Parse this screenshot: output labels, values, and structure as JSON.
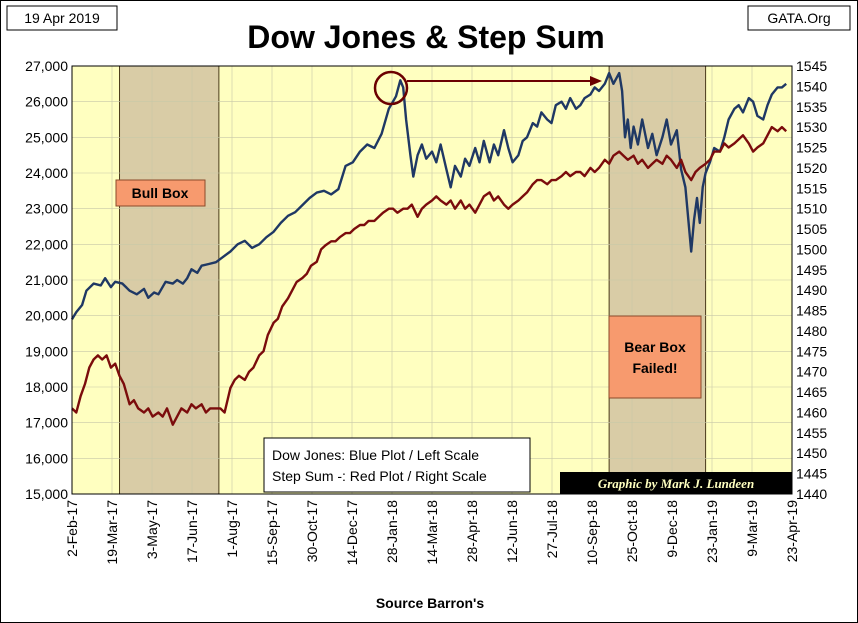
{
  "header": {
    "date": "19 Apr 2019",
    "source_site": "GATA.Org",
    "title": "Dow Jones & Step Sum"
  },
  "legend": {
    "line1": "Dow Jones: Blue Plot / Left Scale",
    "line2": "Step Sum -: Red Plot / Right Scale"
  },
  "credit": "Graphic by Mark J. Lundeen",
  "annotations": {
    "bull_box": "Bull Box",
    "bear_box_line1": "Bear Box",
    "bear_box_line2": "Failed!"
  },
  "colors": {
    "plot_bg": "#ffffc0",
    "box_fill": "#d9cca6",
    "dow": "#1f3864",
    "step_sum": "#7b0c0c",
    "label_fill": "#f79a6e"
  },
  "chart_data": {
    "type": "line",
    "title": "Dow Jones & Step Sum",
    "xlabel": "Source Barron's",
    "x_ticks": [
      "2-Feb-17",
      "19-Mar-17",
      "3-May-17",
      "17-Jun-17",
      "1-Aug-17",
      "15-Sep-17",
      "30-Oct-17",
      "14-Dec-17",
      "28-Jan-18",
      "14-Mar-18",
      "28-Apr-18",
      "12-Jun-18",
      "27-Jul-18",
      "10-Sep-18",
      "25-Oct-18",
      "9-Dec-18",
      "23-Jan-19",
      "9-Mar-19",
      "23-Apr-19"
    ],
    "y_left": {
      "label": "Dow Jones",
      "lim": [
        15000,
        27000
      ],
      "ticks": [
        "15,000",
        "16,000",
        "17,000",
        "18,000",
        "19,000",
        "20,000",
        "21,000",
        "22,000",
        "23,000",
        "24,000",
        "25,000",
        "26,000",
        "27,000"
      ]
    },
    "y_right": {
      "label": "Step Sum",
      "lim": [
        1440,
        1545
      ],
      "ticks": [
        "1440",
        "1445",
        "1450",
        "1455",
        "1460",
        "1465",
        "1470",
        "1475",
        "1480",
        "1485",
        "1490",
        "1495",
        "1500",
        "1505",
        "1510",
        "1515",
        "1520",
        "1525",
        "1530",
        "1535",
        "1540",
        "1545"
      ]
    },
    "shaded_regions": [
      {
        "name": "Bull Box",
        "x_start": 3.3,
        "x_end": 10.2
      },
      {
        "name": "Bear Box",
        "x_start": 37.3,
        "x_end": 44.0
      }
    ],
    "series": [
      {
        "name": "Dow Jones",
        "axis": "left",
        "points": [
          [
            0,
            19900
          ],
          [
            0.3,
            20100
          ],
          [
            0.7,
            20300
          ],
          [
            1.0,
            20700
          ],
          [
            1.5,
            20900
          ],
          [
            2.0,
            20850
          ],
          [
            2.3,
            21050
          ],
          [
            2.7,
            20800
          ],
          [
            3.0,
            20950
          ],
          [
            3.5,
            20900
          ],
          [
            4.0,
            20700
          ],
          [
            4.5,
            20600
          ],
          [
            5.0,
            20750
          ],
          [
            5.3,
            20500
          ],
          [
            5.7,
            20650
          ],
          [
            6.0,
            20600
          ],
          [
            6.5,
            20950
          ],
          [
            7.0,
            20900
          ],
          [
            7.3,
            21000
          ],
          [
            7.7,
            20900
          ],
          [
            8.0,
            21050
          ],
          [
            8.3,
            21300
          ],
          [
            8.7,
            21200
          ],
          [
            9.0,
            21400
          ],
          [
            9.5,
            21450
          ],
          [
            10.0,
            21500
          ],
          [
            10.5,
            21650
          ],
          [
            11.0,
            21800
          ],
          [
            11.5,
            22000
          ],
          [
            12.0,
            22100
          ],
          [
            12.5,
            21900
          ],
          [
            13.0,
            22000
          ],
          [
            13.5,
            22200
          ],
          [
            14.0,
            22350
          ],
          [
            14.5,
            22600
          ],
          [
            15.0,
            22800
          ],
          [
            15.5,
            22900
          ],
          [
            16.0,
            23100
          ],
          [
            16.5,
            23300
          ],
          [
            17.0,
            23450
          ],
          [
            17.5,
            23500
          ],
          [
            18.0,
            23400
          ],
          [
            18.5,
            23550
          ],
          [
            19.0,
            24200
          ],
          [
            19.5,
            24300
          ],
          [
            20.0,
            24600
          ],
          [
            20.5,
            24800
          ],
          [
            21.0,
            24700
          ],
          [
            21.5,
            25100
          ],
          [
            22.0,
            25800
          ],
          [
            22.5,
            26150
          ],
          [
            22.8,
            26600
          ],
          [
            23.0,
            26400
          ],
          [
            23.2,
            25500
          ],
          [
            23.5,
            24500
          ],
          [
            23.7,
            23900
          ],
          [
            24.0,
            24500
          ],
          [
            24.3,
            24800
          ],
          [
            24.6,
            24400
          ],
          [
            25.0,
            24600
          ],
          [
            25.3,
            24300
          ],
          [
            25.6,
            24800
          ],
          [
            26.0,
            24100
          ],
          [
            26.3,
            23600
          ],
          [
            26.6,
            24200
          ],
          [
            27.0,
            23900
          ],
          [
            27.3,
            24400
          ],
          [
            27.6,
            24200
          ],
          [
            28.0,
            24700
          ],
          [
            28.3,
            24300
          ],
          [
            28.6,
            24900
          ],
          [
            29.0,
            24300
          ],
          [
            29.3,
            24800
          ],
          [
            29.6,
            24500
          ],
          [
            30.0,
            25200
          ],
          [
            30.3,
            24700
          ],
          [
            30.6,
            24300
          ],
          [
            31.0,
            24500
          ],
          [
            31.3,
            24900
          ],
          [
            31.6,
            25000
          ],
          [
            32.0,
            25400
          ],
          [
            32.3,
            25300
          ],
          [
            32.6,
            25700
          ],
          [
            33.0,
            25500
          ],
          [
            33.3,
            25400
          ],
          [
            33.6,
            25900
          ],
          [
            34.0,
            26000
          ],
          [
            34.3,
            25800
          ],
          [
            34.6,
            26100
          ],
          [
            35.0,
            25800
          ],
          [
            35.3,
            25900
          ],
          [
            35.6,
            26100
          ],
          [
            36.0,
            26200
          ],
          [
            36.3,
            26400
          ],
          [
            36.6,
            26300
          ],
          [
            37.0,
            26500
          ],
          [
            37.3,
            26800
          ],
          [
            37.6,
            26500
          ],
          [
            38.0,
            26800
          ],
          [
            38.2,
            26300
          ],
          [
            38.4,
            25000
          ],
          [
            38.6,
            25500
          ],
          [
            38.8,
            24700
          ],
          [
            39.0,
            25300
          ],
          [
            39.3,
            24800
          ],
          [
            39.6,
            25500
          ],
          [
            40.0,
            24700
          ],
          [
            40.3,
            25100
          ],
          [
            40.6,
            24500
          ],
          [
            41.0,
            25000
          ],
          [
            41.3,
            25500
          ],
          [
            41.6,
            24800
          ],
          [
            42.0,
            25200
          ],
          [
            42.3,
            24100
          ],
          [
            42.6,
            23600
          ],
          [
            42.8,
            22700
          ],
          [
            43.0,
            21800
          ],
          [
            43.2,
            22700
          ],
          [
            43.4,
            23300
          ],
          [
            43.6,
            22600
          ],
          [
            43.8,
            23600
          ],
          [
            44.0,
            24000
          ],
          [
            44.3,
            24300
          ],
          [
            44.6,
            24700
          ],
          [
            45.0,
            24600
          ],
          [
            45.3,
            25000
          ],
          [
            45.6,
            25500
          ],
          [
            46.0,
            25800
          ],
          [
            46.3,
            25900
          ],
          [
            46.6,
            25700
          ],
          [
            47.0,
            26100
          ],
          [
            47.3,
            26000
          ],
          [
            47.6,
            25600
          ],
          [
            48.0,
            25500
          ],
          [
            48.3,
            25900
          ],
          [
            48.6,
            26200
          ],
          [
            49.0,
            26400
          ],
          [
            49.3,
            26400
          ],
          [
            49.6,
            26500
          ]
        ]
      },
      {
        "name": "Step Sum",
        "axis": "right",
        "points": [
          [
            0,
            1461
          ],
          [
            0.3,
            1460
          ],
          [
            0.6,
            1464
          ],
          [
            0.9,
            1467
          ],
          [
            1.2,
            1471
          ],
          [
            1.5,
            1473
          ],
          [
            1.8,
            1474
          ],
          [
            2.1,
            1473
          ],
          [
            2.4,
            1474
          ],
          [
            2.7,
            1471
          ],
          [
            3.0,
            1472
          ],
          [
            3.3,
            1469
          ],
          [
            3.6,
            1467
          ],
          [
            4.0,
            1462
          ],
          [
            4.3,
            1463
          ],
          [
            4.6,
            1461
          ],
          [
            5.0,
            1460
          ],
          [
            5.3,
            1461
          ],
          [
            5.6,
            1459
          ],
          [
            6.0,
            1460
          ],
          [
            6.3,
            1459
          ],
          [
            6.6,
            1461
          ],
          [
            7.0,
            1457
          ],
          [
            7.3,
            1459
          ],
          [
            7.6,
            1461
          ],
          [
            8.0,
            1460
          ],
          [
            8.3,
            1462
          ],
          [
            8.6,
            1461
          ],
          [
            9.0,
            1462
          ],
          [
            9.3,
            1460
          ],
          [
            9.6,
            1461
          ],
          [
            10.0,
            1461
          ],
          [
            10.3,
            1461
          ],
          [
            10.6,
            1460
          ],
          [
            11.0,
            1466
          ],
          [
            11.3,
            1468
          ],
          [
            11.6,
            1469
          ],
          [
            12.0,
            1468
          ],
          [
            12.3,
            1470
          ],
          [
            12.6,
            1471
          ],
          [
            13.0,
            1474
          ],
          [
            13.3,
            1475
          ],
          [
            13.6,
            1479
          ],
          [
            14.0,
            1482
          ],
          [
            14.3,
            1483
          ],
          [
            14.6,
            1486
          ],
          [
            15.0,
            1488
          ],
          [
            15.3,
            1490
          ],
          [
            15.6,
            1492
          ],
          [
            16.0,
            1493
          ],
          [
            16.3,
            1494
          ],
          [
            16.6,
            1496
          ],
          [
            17.0,
            1497
          ],
          [
            17.3,
            1500
          ],
          [
            17.6,
            1501
          ],
          [
            18.0,
            1502
          ],
          [
            18.3,
            1502
          ],
          [
            18.6,
            1503
          ],
          [
            19.0,
            1504
          ],
          [
            19.3,
            1504
          ],
          [
            19.6,
            1505
          ],
          [
            20.0,
            1506
          ],
          [
            20.3,
            1506
          ],
          [
            20.6,
            1507
          ],
          [
            21.0,
            1507
          ],
          [
            21.3,
            1508
          ],
          [
            21.6,
            1509
          ],
          [
            22.0,
            1510
          ],
          [
            22.3,
            1510
          ],
          [
            22.6,
            1509
          ],
          [
            23.0,
            1510
          ],
          [
            23.3,
            1510
          ],
          [
            23.6,
            1511
          ],
          [
            24.0,
            1508
          ],
          [
            24.3,
            1510
          ],
          [
            24.6,
            1511
          ],
          [
            25.0,
            1512
          ],
          [
            25.3,
            1513
          ],
          [
            25.6,
            1512
          ],
          [
            26.0,
            1511
          ],
          [
            26.3,
            1512
          ],
          [
            26.6,
            1510
          ],
          [
            27.0,
            1512
          ],
          [
            27.3,
            1510
          ],
          [
            27.6,
            1511
          ],
          [
            28.0,
            1509
          ],
          [
            28.3,
            1511
          ],
          [
            28.6,
            1513
          ],
          [
            29.0,
            1514
          ],
          [
            29.3,
            1512
          ],
          [
            29.6,
            1513
          ],
          [
            30.0,
            1511
          ],
          [
            30.3,
            1510
          ],
          [
            30.6,
            1511
          ],
          [
            31.0,
            1512
          ],
          [
            31.3,
            1513
          ],
          [
            31.6,
            1514
          ],
          [
            32.0,
            1516
          ],
          [
            32.3,
            1517
          ],
          [
            32.6,
            1517
          ],
          [
            33.0,
            1516
          ],
          [
            33.3,
            1517
          ],
          [
            33.6,
            1517
          ],
          [
            34.0,
            1518
          ],
          [
            34.3,
            1519
          ],
          [
            34.6,
            1518
          ],
          [
            35.0,
            1519
          ],
          [
            35.3,
            1519
          ],
          [
            35.6,
            1518
          ],
          [
            36.0,
            1520
          ],
          [
            36.3,
            1519
          ],
          [
            36.6,
            1520
          ],
          [
            37.0,
            1522
          ],
          [
            37.3,
            1521
          ],
          [
            37.6,
            1523
          ],
          [
            38.0,
            1524
          ],
          [
            38.3,
            1523
          ],
          [
            38.6,
            1522
          ],
          [
            39.0,
            1523
          ],
          [
            39.3,
            1521
          ],
          [
            39.6,
            1522
          ],
          [
            40.0,
            1520
          ],
          [
            40.3,
            1521
          ],
          [
            40.6,
            1522
          ],
          [
            41.0,
            1521
          ],
          [
            41.3,
            1523
          ],
          [
            41.6,
            1522
          ],
          [
            42.0,
            1520
          ],
          [
            42.3,
            1522
          ],
          [
            42.6,
            1519
          ],
          [
            43.0,
            1517
          ],
          [
            43.3,
            1519
          ],
          [
            43.6,
            1520
          ],
          [
            44.0,
            1521
          ],
          [
            44.3,
            1522
          ],
          [
            44.6,
            1524
          ],
          [
            45.0,
            1524
          ],
          [
            45.3,
            1526
          ],
          [
            45.6,
            1525
          ],
          [
            46.0,
            1526
          ],
          [
            46.3,
            1527
          ],
          [
            46.6,
            1528
          ],
          [
            47.0,
            1526
          ],
          [
            47.3,
            1524
          ],
          [
            47.6,
            1525
          ],
          [
            48.0,
            1526
          ],
          [
            48.3,
            1528
          ],
          [
            48.6,
            1530
          ],
          [
            49.0,
            1529
          ],
          [
            49.3,
            1530
          ],
          [
            49.6,
            1529
          ]
        ]
      }
    ]
  }
}
